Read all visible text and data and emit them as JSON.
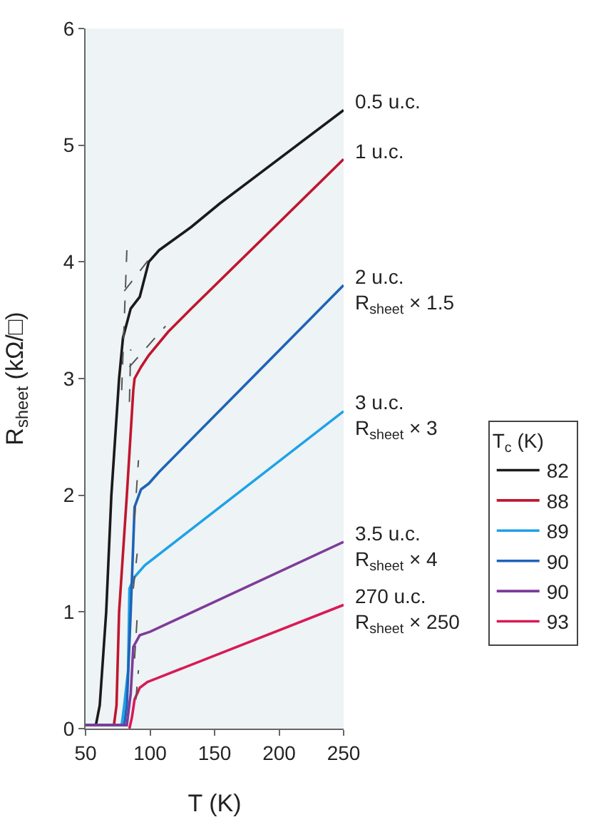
{
  "chart_data": {
    "type": "line",
    "xlabel": "T (K)",
    "ylabel": "R$_{sheet}$ (kΩ/□)",
    "legend_title": "T$_{c}$ (K)",
    "xlim": [
      50,
      250
    ],
    "xticks": [
      50,
      100,
      150,
      200,
      250
    ],
    "ylim": [
      0,
      6
    ],
    "yticks": [
      0,
      1,
      2,
      3,
      4,
      5,
      6
    ],
    "grid": false,
    "legend": "right",
    "line_style": "solid",
    "series": [
      {
        "name": "82",
        "color": "#1a1a1a",
        "x": [
          50,
          58,
          61,
          66,
          70,
          76,
          79,
          85,
          92,
          99,
          107,
          132,
          154,
          250
        ],
        "values": [
          0.03,
          0.03,
          0.2,
          1,
          2,
          3,
          3.35,
          3.6,
          3.7,
          4,
          4.1,
          4.3,
          4.5,
          5.3
        ]
      },
      {
        "name": "88",
        "color": "#c0162e",
        "x": [
          50,
          72,
          74,
          76,
          82,
          87,
          88,
          93,
          99,
          114,
          132,
          250
        ],
        "values": [
          0.03,
          0.03,
          0.2,
          1,
          2,
          2.9,
          3,
          3.1,
          3.2,
          3.4,
          3.6,
          4.88
        ]
      },
      {
        "name": "89",
        "color": "#1fa2e6",
        "x": [
          50,
          78,
          80,
          83,
          84,
          88,
          96,
          250
        ],
        "values": [
          0.03,
          0.03,
          0.2,
          0.5,
          1.2,
          1.3,
          1.4,
          2.72
        ]
      },
      {
        "name": "90",
        "color": "#1f63b8",
        "x": [
          50,
          80,
          82,
          85,
          88,
          93,
          99,
          107,
          250
        ],
        "values": [
          0.03,
          0.03,
          0.2,
          1,
          1.9,
          2.05,
          2.1,
          2.2,
          3.8
        ]
      },
      {
        "name": "90",
        "color": "#7d3c98",
        "x": [
          50,
          82,
          85,
          87,
          92,
          100,
          250
        ],
        "values": [
          0.03,
          0.03,
          0.3,
          0.7,
          0.8,
          0.83,
          1.6
        ]
      },
      {
        "name": "93",
        "color": "#d81b55",
        "x": [
          84,
          86,
          88,
          92,
          98,
          105,
          250
        ],
        "values": [
          0,
          0.1,
          0.25,
          0.35,
          0.4,
          0.43,
          1.06
        ]
      },
      {
        "type": "line",
        "color": "#555555",
        "line_style": "dashed",
        "x": [
          78,
          82
        ],
        "values": [
          2.9,
          4.1
        ]
      },
      {
        "type": "line",
        "color": "#555555",
        "line_style": "dashed",
        "x": [
          80,
          99
        ],
        "values": [
          3.75,
          4.02
        ]
      },
      {
        "type": "line",
        "color": "#555555",
        "line_style": "dashed",
        "x": [
          84,
          85
        ],
        "values": [
          2.8,
          3.25
        ]
      },
      {
        "type": "line",
        "color": "#555555",
        "line_style": "dashed",
        "x": [
          84,
          112
        ],
        "values": [
          3.1,
          3.45
        ]
      },
      {
        "type": "line",
        "color": "#555555",
        "line_style": "dashed",
        "x": [
          88,
          91
        ],
        "values": [
          1.8,
          2.3
        ]
      },
      {
        "type": "line",
        "color": "#555555",
        "line_style": "dashed",
        "x": [
          87,
          90
        ],
        "values": [
          1.2,
          1.5
        ]
      },
      {
        "type": "line",
        "color": "#555555",
        "line_style": "dashed",
        "x": [
          88,
          90
        ],
        "values": [
          0.6,
          0.95
        ]
      },
      {
        "type": "line",
        "color": "#555555",
        "line_style": "dashed",
        "x": [
          89,
          91
        ],
        "values": [
          0.25,
          0.5
        ]
      }
    ],
    "annotations": [
      "0.5 u.c.",
      "1 u.c.",
      "2 u.c.\nR$_{sheet}$ × 1.5",
      "3 u.c.\nR$_{sheet}$ × 3",
      "3.5 u.c.\nR$_{sheet}$ × 4",
      "270 u.c.\nR$_{sheet}$ × 250"
    ]
  }
}
